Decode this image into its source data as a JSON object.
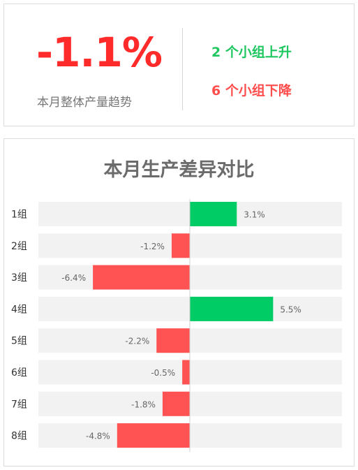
{
  "summary": {
    "overall_value": "-1.1%",
    "overall_label": "本月整体产量趋势",
    "up_text": "2 个小组上升",
    "down_text": "6 个小组下降"
  },
  "colors": {
    "negative": "#ff5252",
    "positive": "#00cc66",
    "track": "#f2f2f2",
    "big_value": "#ff2a2a"
  },
  "chart_data": {
    "type": "bar",
    "orientation": "horizontal",
    "title": "本月生产差异对比",
    "categories": [
      "1组",
      "2组",
      "3组",
      "4组",
      "5组",
      "6组",
      "7组",
      "8组"
    ],
    "values": [
      3.1,
      -1.2,
      -6.4,
      5.5,
      -2.2,
      -0.5,
      -1.8,
      -4.8
    ],
    "value_labels": [
      "3.1%",
      "-1.2%",
      "-6.4%",
      "5.5%",
      "-2.2%",
      "-0.5%",
      "-1.8%",
      "-4.8%"
    ],
    "xlim": [
      -10,
      10
    ],
    "unit": "%",
    "grid": false
  }
}
